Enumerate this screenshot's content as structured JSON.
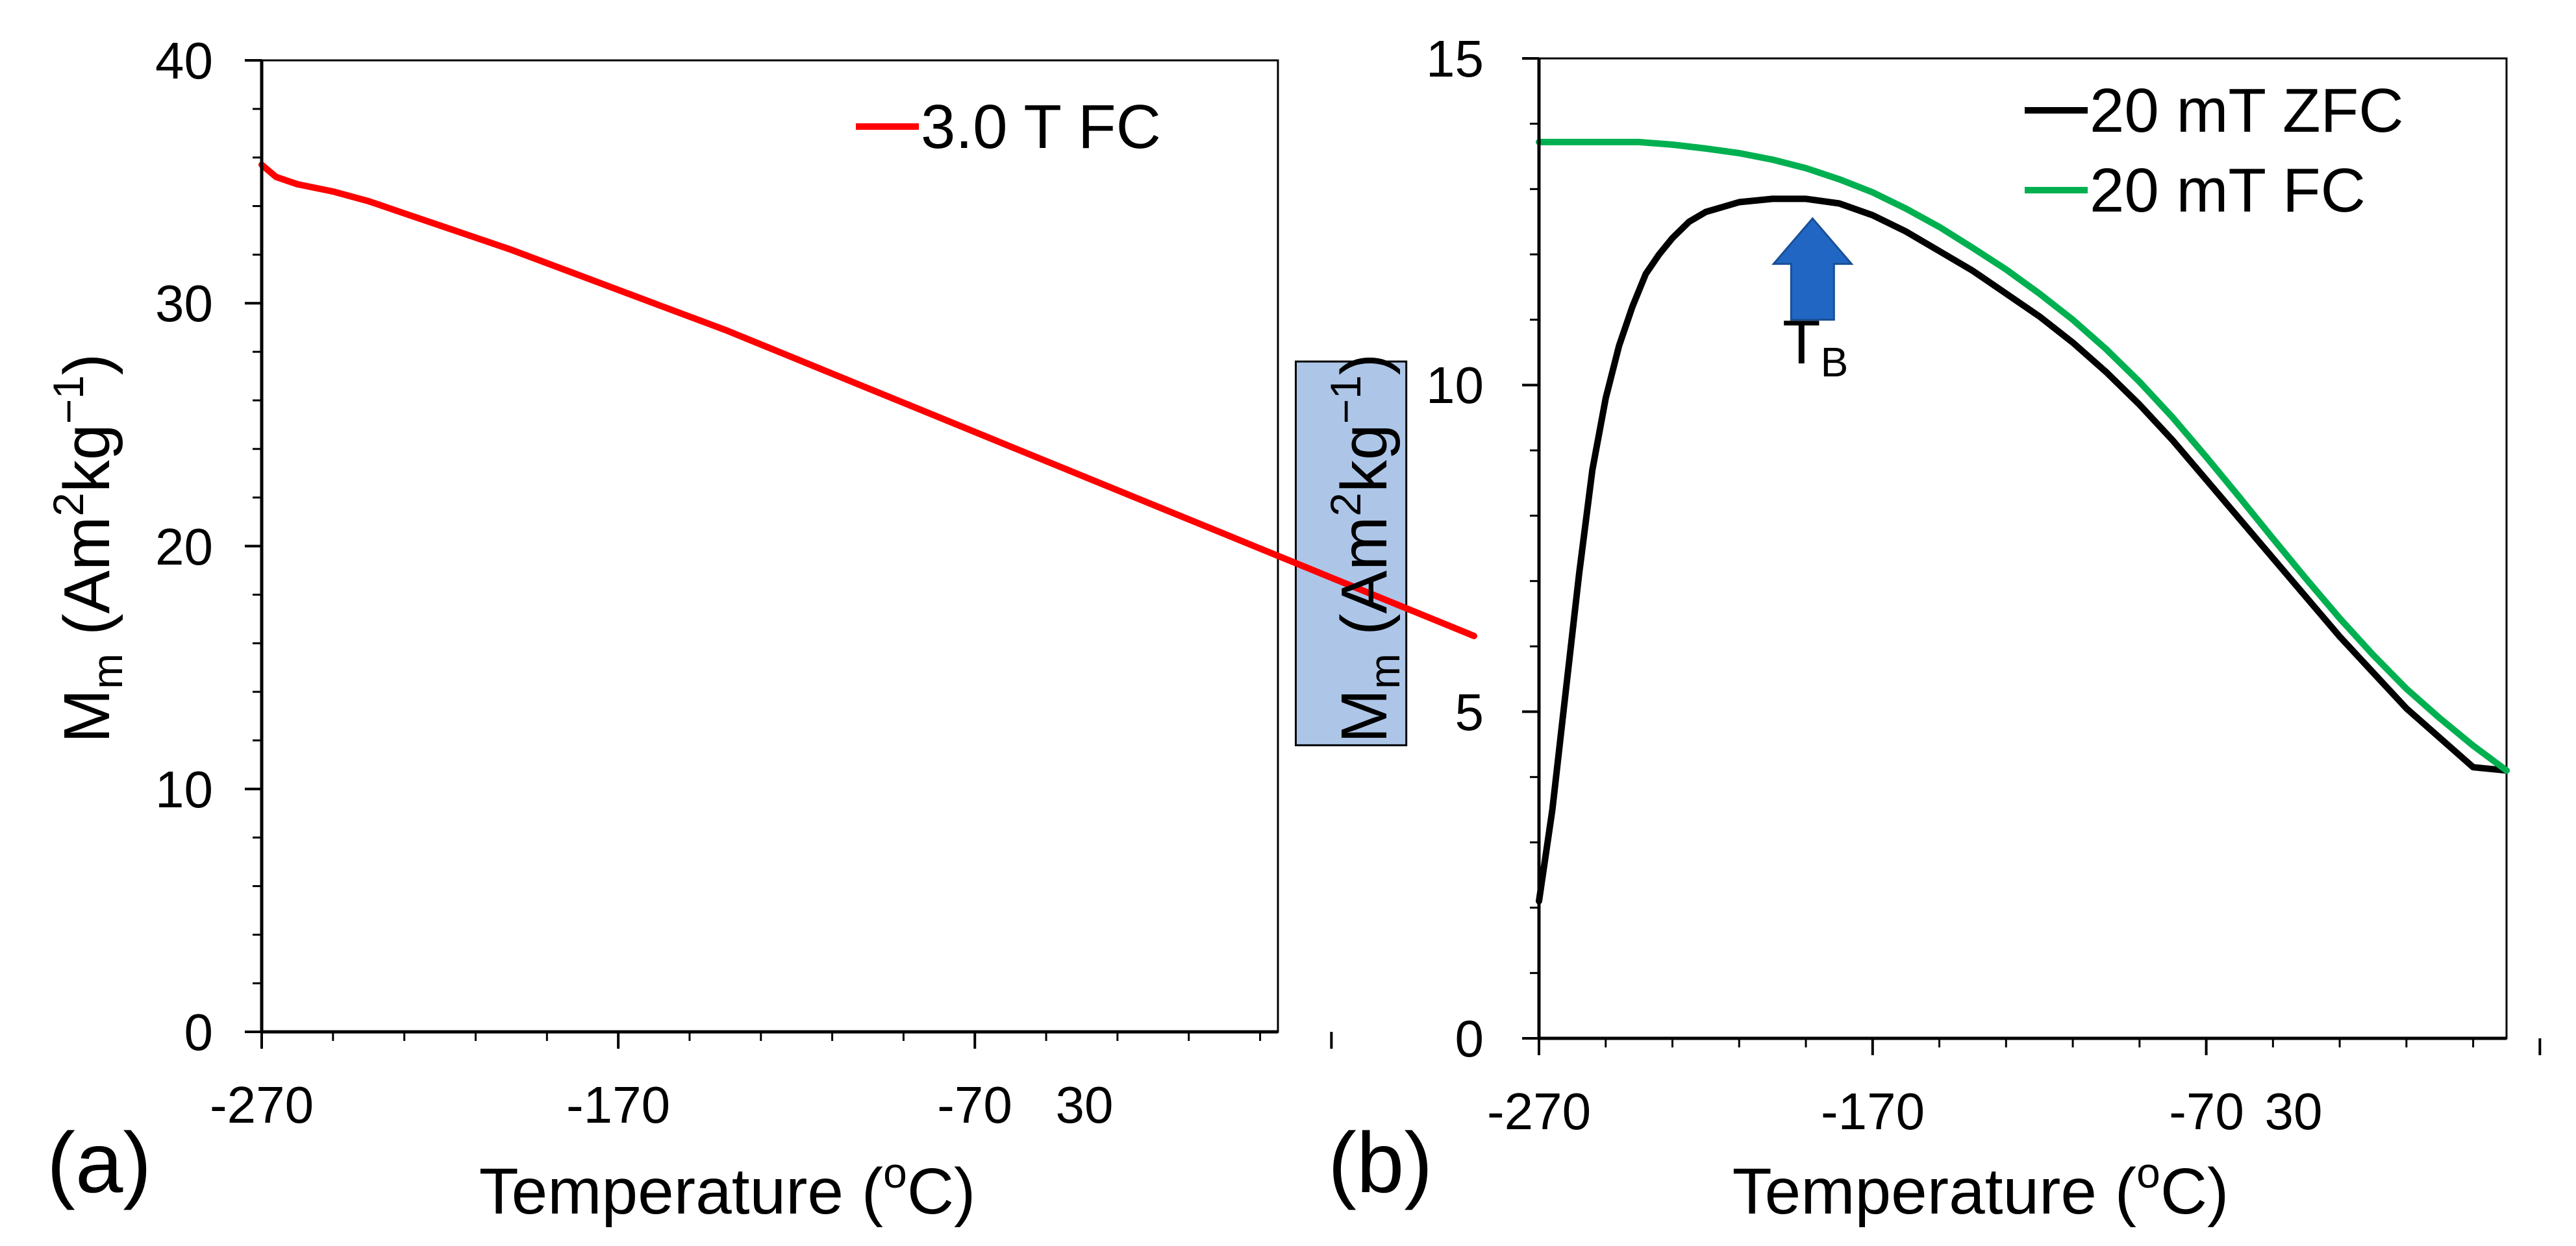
{
  "chart_data": [
    {
      "type": "line",
      "panel_label": "(a)",
      "xlabel": {
        "main": "Temperature (",
        "sup": "o",
        "tail": "C)"
      },
      "ylabel": {
        "m": "M",
        "sub": "m",
        "unit_a": " (Am",
        "sup2": "2",
        "unit_b": "kg",
        "supm1": "−1",
        "close": ")"
      },
      "xlim": [
        -270,
        15
      ],
      "ylim": [
        0,
        40
      ],
      "xticks": [
        -270,
        -170,
        -70,
        30
      ],
      "yticks": [
        0,
        10,
        20,
        30,
        40
      ],
      "xtick_labels": [
        "-270",
        "-170",
        "-70",
        "30"
      ],
      "ytick_labels": [
        "0",
        "10",
        "20",
        "30",
        "40"
      ],
      "legend_position": "top-right",
      "series": [
        {
          "name": "3.0 T FC",
          "color": "#ff0000",
          "x": [
            -270,
            -266,
            -260,
            -250,
            -240,
            -238,
            -230,
            -220,
            -210,
            -200,
            -180,
            -160,
            -140,
            -120,
            -100,
            -80,
            -60,
            -40,
            -20,
            0,
            20,
            30,
            40,
            50,
            60,
            70
          ],
          "y": [
            35.7,
            35.2,
            34.9,
            34.6,
            34.2,
            34.1,
            33.7,
            33.2,
            32.7,
            32.2,
            31.1,
            30.0,
            28.9,
            27.7,
            26.5,
            25.3,
            24.1,
            22.9,
            21.7,
            20.5,
            19.3,
            18.7,
            18.1,
            17.5,
            16.9,
            16.3
          ]
        }
      ],
      "highlight_box": {
        "x_range": [
          20,
          51
        ],
        "y_range": [
          11.8,
          27.6
        ],
        "color": "#adc6e8"
      }
    },
    {
      "type": "line",
      "panel_label": "(b)",
      "xlabel": {
        "main": "Temperature (",
        "sup": "o",
        "tail": "C)"
      },
      "ylabel": {
        "m": "M",
        "sub": "m",
        "unit_a": " (Am",
        "sup2": "2",
        "unit_b": "kg",
        "supm1": "−1",
        "close": ")"
      },
      "xlim": [
        -270,
        20
      ],
      "ylim": [
        0,
        15
      ],
      "xticks": [
        -270,
        -170,
        -70,
        30
      ],
      "yticks": [
        0,
        5,
        10,
        15
      ],
      "xtick_labels": [
        "-270",
        "-170",
        "-70",
        "30"
      ],
      "ytick_labels": [
        "0",
        "5",
        "10",
        "15"
      ],
      "legend_position": "top-right",
      "series": [
        {
          "name": "20 mT ZFC",
          "color": "#000000",
          "x": [
            -270,
            -266,
            -262,
            -258,
            -254,
            -250,
            -246,
            -242,
            -238,
            -234,
            -230,
            -225,
            -220,
            -210,
            -200,
            -190,
            -180,
            -170,
            -160,
            -150,
            -140,
            -130,
            -120,
            -110,
            -100,
            -90,
            -80,
            -70,
            -60,
            -50,
            -40,
            -30,
            -20,
            -10,
            0,
            10,
            20
          ],
          "y": [
            2.1,
            3.5,
            5.3,
            7.1,
            8.7,
            9.8,
            10.6,
            11.2,
            11.7,
            12.0,
            12.25,
            12.5,
            12.65,
            12.8,
            12.85,
            12.85,
            12.78,
            12.6,
            12.35,
            12.05,
            11.75,
            11.4,
            11.05,
            10.65,
            10.2,
            9.7,
            9.15,
            8.55,
            7.95,
            7.35,
            6.75,
            6.15,
            5.6,
            5.05,
            4.6,
            4.15,
            4.1
          ]
        },
        {
          "name": "20 mT FC",
          "color": "#00b050",
          "x": [
            -270,
            -260,
            -250,
            -240,
            -230,
            -220,
            -210,
            -200,
            -190,
            -180,
            -170,
            -160,
            -150,
            -140,
            -130,
            -120,
            -110,
            -100,
            -90,
            -80,
            -70,
            -60,
            -50,
            -40,
            -30,
            -20,
            -10,
            0,
            10,
            20
          ],
          "y": [
            13.72,
            13.72,
            13.72,
            13.72,
            13.68,
            13.62,
            13.55,
            13.45,
            13.32,
            13.15,
            12.95,
            12.7,
            12.42,
            12.1,
            11.77,
            11.4,
            11.0,
            10.55,
            10.05,
            9.5,
            8.9,
            8.28,
            7.65,
            7.03,
            6.43,
            5.87,
            5.35,
            4.9,
            4.48,
            4.1
          ]
        }
      ],
      "annotation": {
        "label": "T",
        "sub": "B",
        "arrow_color": "#2166c3",
        "arrow_x": -188,
        "arrow_y_range": [
          11.0,
          12.55
        ]
      }
    }
  ]
}
